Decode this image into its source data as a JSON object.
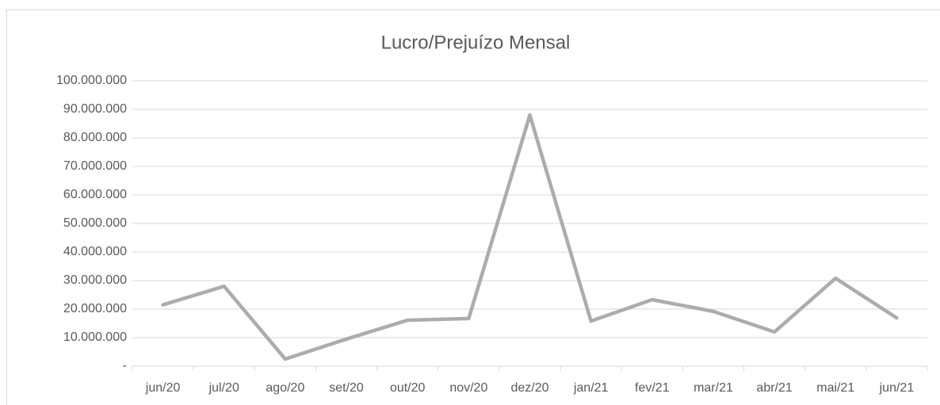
{
  "chart_data": {
    "type": "line",
    "title": "Lucro/Prejuízo Mensal",
    "categories": [
      "jun/20",
      "jul/20",
      "ago/20",
      "set/20",
      "out/20",
      "nov/20",
      "dez/20",
      "jan/21",
      "fev/21",
      "mar/21",
      "abr/21",
      "mai/21",
      "jun/21"
    ],
    "series": [
      {
        "name": "Lucro/Prejuízo",
        "color": "#aeabac",
        "values": [
          21500000,
          28000000,
          2500000,
          9500000,
          16100000,
          16700000,
          88000000,
          15800000,
          23300000,
          19200000,
          12000000,
          30800000,
          16900000
        ]
      }
    ],
    "ylim": [
      0,
      100000000
    ],
    "yticks": [
      {
        "value": 0,
        "label": "-"
      },
      {
        "value": 10000000,
        "label": "10.000.000"
      },
      {
        "value": 20000000,
        "label": "20.000.000"
      },
      {
        "value": 30000000,
        "label": "30.000.000"
      },
      {
        "value": 40000000,
        "label": "40.000.000"
      },
      {
        "value": 50000000,
        "label": "50.000.000"
      },
      {
        "value": 60000000,
        "label": "60.000.000"
      },
      {
        "value": 70000000,
        "label": "70.000.000"
      },
      {
        "value": 80000000,
        "label": "80.000.000"
      },
      {
        "value": 90000000,
        "label": "90.000.000"
      },
      {
        "value": 100000000,
        "label": "100.000.000"
      }
    ],
    "grid": true
  }
}
